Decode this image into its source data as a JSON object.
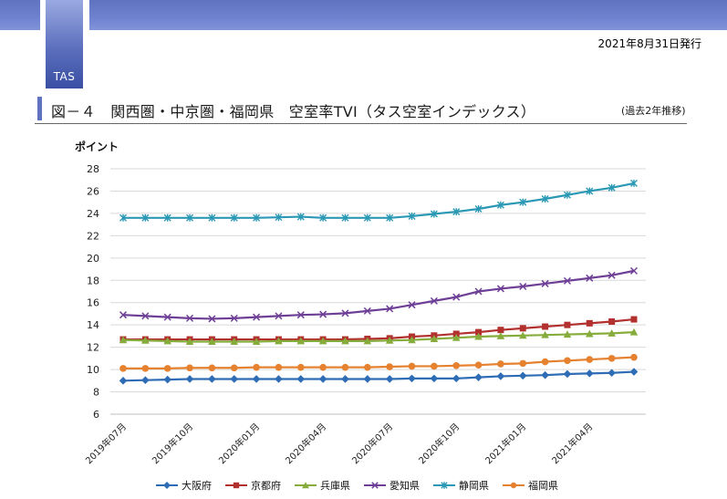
{
  "header": {
    "logo_text": "TAS",
    "date": "2021年8月31日発行",
    "title": "図－４　関西圏・中京圏・福岡県　空室率TVI（タス空室インデックス）",
    "subtitle": "(過去2年推移)"
  },
  "colors": {
    "大阪府": "#2e6db5",
    "京都府": "#b2302e",
    "兵庫県": "#86ad3c",
    "愛知県": "#6e3f96",
    "静岡県": "#2b99b5",
    "福岡県": "#e5812f"
  },
  "chart_data": {
    "type": "line",
    "title": "",
    "ylabel": "ポイント",
    "xlabel": "",
    "ylim": [
      6,
      28
    ],
    "yticks": [
      6,
      8,
      10,
      12,
      14,
      16,
      18,
      20,
      22,
      24,
      26,
      28
    ],
    "xtick_labels": [
      "2019年07月",
      "2019年10月",
      "2020年01月",
      "2020年04月",
      "2020年07月",
      "2020年10月",
      "2021年01月",
      "2021年04月"
    ],
    "x": [
      "2019-07",
      "2019-08",
      "2019-09",
      "2019-10",
      "2019-11",
      "2019-12",
      "2020-01",
      "2020-02",
      "2020-03",
      "2020-04",
      "2020-05",
      "2020-06",
      "2020-07",
      "2020-08",
      "2020-09",
      "2020-10",
      "2020-11",
      "2020-12",
      "2021-01",
      "2021-02",
      "2021-03",
      "2021-04",
      "2021-05",
      "2021-06"
    ],
    "series": [
      {
        "name": "大阪府",
        "marker": "diamond",
        "values": [
          9.0,
          9.05,
          9.1,
          9.15,
          9.15,
          9.15,
          9.15,
          9.15,
          9.15,
          9.15,
          9.15,
          9.15,
          9.15,
          9.2,
          9.2,
          9.2,
          9.3,
          9.4,
          9.45,
          9.5,
          9.6,
          9.65,
          9.7,
          9.8
        ]
      },
      {
        "name": "京都府",
        "marker": "square",
        "values": [
          12.7,
          12.7,
          12.7,
          12.7,
          12.7,
          12.7,
          12.7,
          12.7,
          12.7,
          12.7,
          12.7,
          12.75,
          12.8,
          12.95,
          13.05,
          13.2,
          13.35,
          13.55,
          13.7,
          13.85,
          14.0,
          14.15,
          14.3,
          14.5
        ]
      },
      {
        "name": "兵庫県",
        "marker": "triangle",
        "values": [
          12.65,
          12.6,
          12.55,
          12.5,
          12.5,
          12.5,
          12.5,
          12.55,
          12.55,
          12.55,
          12.55,
          12.55,
          12.6,
          12.65,
          12.75,
          12.85,
          12.95,
          13.0,
          13.05,
          13.1,
          13.15,
          13.2,
          13.25,
          13.35
        ]
      },
      {
        "name": "愛知県",
        "marker": "x",
        "values": [
          14.9,
          14.8,
          14.7,
          14.6,
          14.55,
          14.6,
          14.7,
          14.8,
          14.9,
          14.95,
          15.05,
          15.25,
          15.45,
          15.8,
          16.15,
          16.5,
          17.0,
          17.25,
          17.45,
          17.7,
          17.95,
          18.2,
          18.45,
          18.85
        ]
      },
      {
        "name": "静岡県",
        "marker": "star",
        "values": [
          23.6,
          23.6,
          23.6,
          23.6,
          23.6,
          23.6,
          23.6,
          23.65,
          23.7,
          23.6,
          23.6,
          23.6,
          23.6,
          23.75,
          23.95,
          24.15,
          24.4,
          24.75,
          25.0,
          25.3,
          25.65,
          26.0,
          26.3,
          26.7
        ]
      },
      {
        "name": "福岡県",
        "marker": "circle",
        "values": [
          10.1,
          10.1,
          10.1,
          10.15,
          10.15,
          10.15,
          10.2,
          10.2,
          10.2,
          10.2,
          10.2,
          10.2,
          10.25,
          10.3,
          10.3,
          10.35,
          10.4,
          10.5,
          10.55,
          10.7,
          10.8,
          10.9,
          11.0,
          11.1
        ]
      }
    ],
    "legend_position": "bottom"
  }
}
